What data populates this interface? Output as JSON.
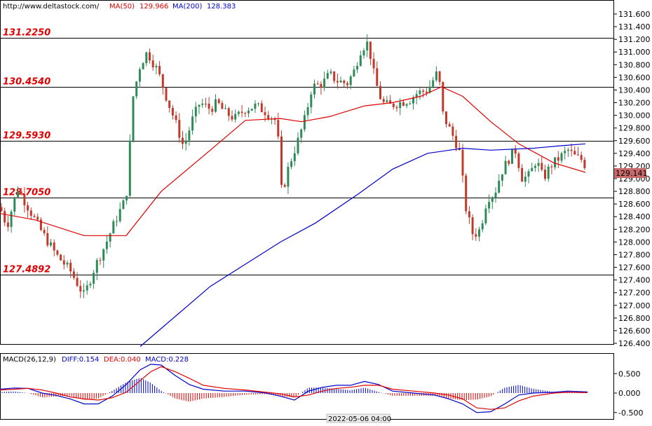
{
  "header": {
    "url": "http://www.deltastock.com/",
    "ma50_label": "MA(50)",
    "ma50_value": "129.966",
    "ma200_label": "MA(200)",
    "ma200_value": "128.383",
    "colors": {
      "url": "#000000",
      "ma50": "#e00000",
      "ma200": "#0000cc"
    }
  },
  "macd_header": {
    "name": "MACD(26,12,9)",
    "diff": "DIFF:0.154",
    "dea": "DEA:0.040",
    "macd": "MACD:0.228"
  },
  "time_label": "2022-05-06 04:00",
  "current_price": "129.141",
  "chart_data": {
    "type": "candlestick",
    "price_axis": {
      "ylim": [
        126.3,
        131.75
      ],
      "ticks": [
        "131.600",
        "131.400",
        "131.200",
        "131.000",
        "130.800",
        "130.600",
        "130.400",
        "130.200",
        "130.000",
        "129.800",
        "129.600",
        "129.400",
        "129.200",
        "129.000",
        "128.800",
        "128.600",
        "128.400",
        "128.200",
        "128.000",
        "127.800",
        "127.600",
        "127.400",
        "127.200",
        "127.000",
        "126.800",
        "126.600",
        "126.400"
      ]
    },
    "levels": [
      {
        "label": "131.2250",
        "value": 131.225
      },
      {
        "label": "130.4540",
        "value": 130.454
      },
      {
        "label": "129.5930",
        "value": 129.593
      },
      {
        "label": "128.7050",
        "value": 128.705
      },
      {
        "label": "127.4892",
        "value": 127.4892
      }
    ],
    "colors": {
      "up": "#2e8b57",
      "down": "#c0392b",
      "ma50": "#e00000",
      "ma200": "#0000cc",
      "diff": "#0000cc",
      "dea": "#e00000",
      "current_price_bg": "#c96a6a"
    },
    "ma50": [
      [
        0,
        128.45
      ],
      [
        50,
        128.35
      ],
      [
        120,
        128.1
      ],
      [
        180,
        128.1
      ],
      [
        230,
        128.8
      ],
      [
        300,
        129.45
      ],
      [
        350,
        129.92
      ],
      [
        400,
        129.95
      ],
      [
        430,
        129.9
      ],
      [
        470,
        129.98
      ],
      [
        520,
        130.15
      ],
      [
        560,
        130.2
      ],
      [
        600,
        130.3
      ],
      [
        630,
        130.45
      ],
      [
        660,
        130.3
      ],
      [
        700,
        129.9
      ],
      [
        740,
        129.55
      ],
      [
        790,
        129.25
      ],
      [
        835,
        129.1
      ]
    ],
    "ma200": [
      [
        200,
        126.35
      ],
      [
        300,
        127.3
      ],
      [
        400,
        128.0
      ],
      [
        450,
        128.3
      ],
      [
        510,
        128.75
      ],
      [
        560,
        129.15
      ],
      [
        610,
        129.4
      ],
      [
        660,
        129.48
      ],
      [
        700,
        129.45
      ],
      [
        760,
        129.48
      ],
      [
        800,
        129.52
      ],
      [
        835,
        129.55
      ]
    ],
    "anchors": [
      [
        0,
        128.55
      ],
      [
        10,
        128.25
      ],
      [
        25,
        128.85
      ],
      [
        40,
        128.55
      ],
      [
        60,
        128.15
      ],
      [
        80,
        127.8
      ],
      [
        100,
        127.55
      ],
      [
        120,
        127.15
      ],
      [
        135,
        127.6
      ],
      [
        150,
        127.95
      ],
      [
        165,
        128.35
      ],
      [
        180,
        128.7
      ],
      [
        190,
        130.3
      ],
      [
        200,
        130.8
      ],
      [
        210,
        131.0
      ],
      [
        225,
        130.7
      ],
      [
        240,
        130.2
      ],
      [
        250,
        129.9
      ],
      [
        262,
        129.5
      ],
      [
        275,
        129.95
      ],
      [
        285,
        130.2
      ],
      [
        300,
        130.1
      ],
      [
        310,
        130.2
      ],
      [
        320,
        130.05
      ],
      [
        335,
        129.95
      ],
      [
        350,
        130.1
      ],
      [
        365,
        130.15
      ],
      [
        380,
        130.05
      ],
      [
        395,
        129.9
      ],
      [
        402,
        128.75
      ],
      [
        412,
        129.2
      ],
      [
        425,
        129.6
      ],
      [
        435,
        129.95
      ],
      [
        445,
        130.45
      ],
      [
        460,
        130.5
      ],
      [
        470,
        130.65
      ],
      [
        480,
        130.55
      ],
      [
        495,
        130.5
      ],
      [
        505,
        130.7
      ],
      [
        515,
        131.05
      ],
      [
        525,
        131.15
      ],
      [
        535,
        130.55
      ],
      [
        545,
        130.2
      ],
      [
        555,
        130.15
      ],
      [
        570,
        130.2
      ],
      [
        585,
        130.25
      ],
      [
        595,
        130.35
      ],
      [
        610,
        130.4
      ],
      [
        625,
        130.7
      ],
      [
        632,
        130.0
      ],
      [
        645,
        129.7
      ],
      [
        655,
        129.45
      ],
      [
        665,
        128.5
      ],
      [
        675,
        128.1
      ],
      [
        685,
        128.2
      ],
      [
        695,
        128.7
      ],
      [
        705,
        128.75
      ],
      [
        715,
        129.1
      ],
      [
        725,
        129.3
      ],
      [
        735,
        129.45
      ],
      [
        745,
        129.0
      ],
      [
        755,
        129.05
      ],
      [
        765,
        129.3
      ],
      [
        775,
        129.0
      ],
      [
        785,
        129.2
      ],
      [
        795,
        129.3
      ],
      [
        810,
        129.45
      ],
      [
        820,
        129.35
      ],
      [
        830,
        129.3
      ],
      [
        838,
        129.14
      ]
    ],
    "macd_axis": {
      "ylim": [
        -0.62,
        0.9
      ],
      "ticks": [
        "0.500",
        "0.000",
        "-0.500"
      ]
    },
    "diff": [
      [
        0,
        0.1
      ],
      [
        20,
        0.13
      ],
      [
        40,
        0.12
      ],
      [
        60,
        0.0
      ],
      [
        80,
        -0.06
      ],
      [
        100,
        -0.15
      ],
      [
        120,
        -0.28
      ],
      [
        140,
        -0.28
      ],
      [
        160,
        -0.08
      ],
      [
        180,
        0.22
      ],
      [
        200,
        0.6
      ],
      [
        215,
        0.74
      ],
      [
        230,
        0.72
      ],
      [
        250,
        0.45
      ],
      [
        270,
        0.22
      ],
      [
        290,
        0.1
      ],
      [
        320,
        0.05
      ],
      [
        350,
        0.05
      ],
      [
        380,
        0.0
      ],
      [
        400,
        -0.08
      ],
      [
        420,
        -0.18
      ],
      [
        440,
        0.05
      ],
      [
        460,
        0.15
      ],
      [
        480,
        0.2
      ],
      [
        500,
        0.2
      ],
      [
        520,
        0.3
      ],
      [
        540,
        0.22
      ],
      [
        560,
        0.05
      ],
      [
        590,
        0.0
      ],
      [
        620,
        -0.05
      ],
      [
        640,
        -0.15
      ],
      [
        660,
        -0.28
      ],
      [
        680,
        -0.5
      ],
      [
        700,
        -0.48
      ],
      [
        720,
        -0.28
      ],
      [
        740,
        -0.05
      ],
      [
        760,
        0.0
      ],
      [
        790,
        0.02
      ],
      [
        810,
        0.05
      ],
      [
        838,
        0.03
      ]
    ],
    "dea": [
      [
        0,
        0.08
      ],
      [
        20,
        0.1
      ],
      [
        40,
        0.12
      ],
      [
        60,
        0.08
      ],
      [
        80,
        0.0
      ],
      [
        100,
        -0.1
      ],
      [
        120,
        -0.15
      ],
      [
        140,
        -0.18
      ],
      [
        160,
        -0.12
      ],
      [
        180,
        0.02
      ],
      [
        200,
        0.32
      ],
      [
        215,
        0.55
      ],
      [
        230,
        0.68
      ],
      [
        250,
        0.55
      ],
      [
        270,
        0.38
      ],
      [
        290,
        0.2
      ],
      [
        320,
        0.12
      ],
      [
        350,
        0.08
      ],
      [
        380,
        0.02
      ],
      [
        400,
        -0.02
      ],
      [
        420,
        -0.1
      ],
      [
        440,
        -0.05
      ],
      [
        460,
        0.05
      ],
      [
        480,
        0.12
      ],
      [
        500,
        0.15
      ],
      [
        520,
        0.2
      ],
      [
        540,
        0.2
      ],
      [
        560,
        0.1
      ],
      [
        590,
        0.05
      ],
      [
        620,
        0.0
      ],
      [
        640,
        -0.05
      ],
      [
        660,
        -0.15
      ],
      [
        680,
        -0.38
      ],
      [
        700,
        -0.42
      ],
      [
        720,
        -0.38
      ],
      [
        740,
        -0.2
      ],
      [
        760,
        -0.08
      ],
      [
        790,
        0.0
      ],
      [
        810,
        0.02
      ],
      [
        838,
        0.01
      ]
    ],
    "x_label": "2022-05-06 04:00"
  }
}
